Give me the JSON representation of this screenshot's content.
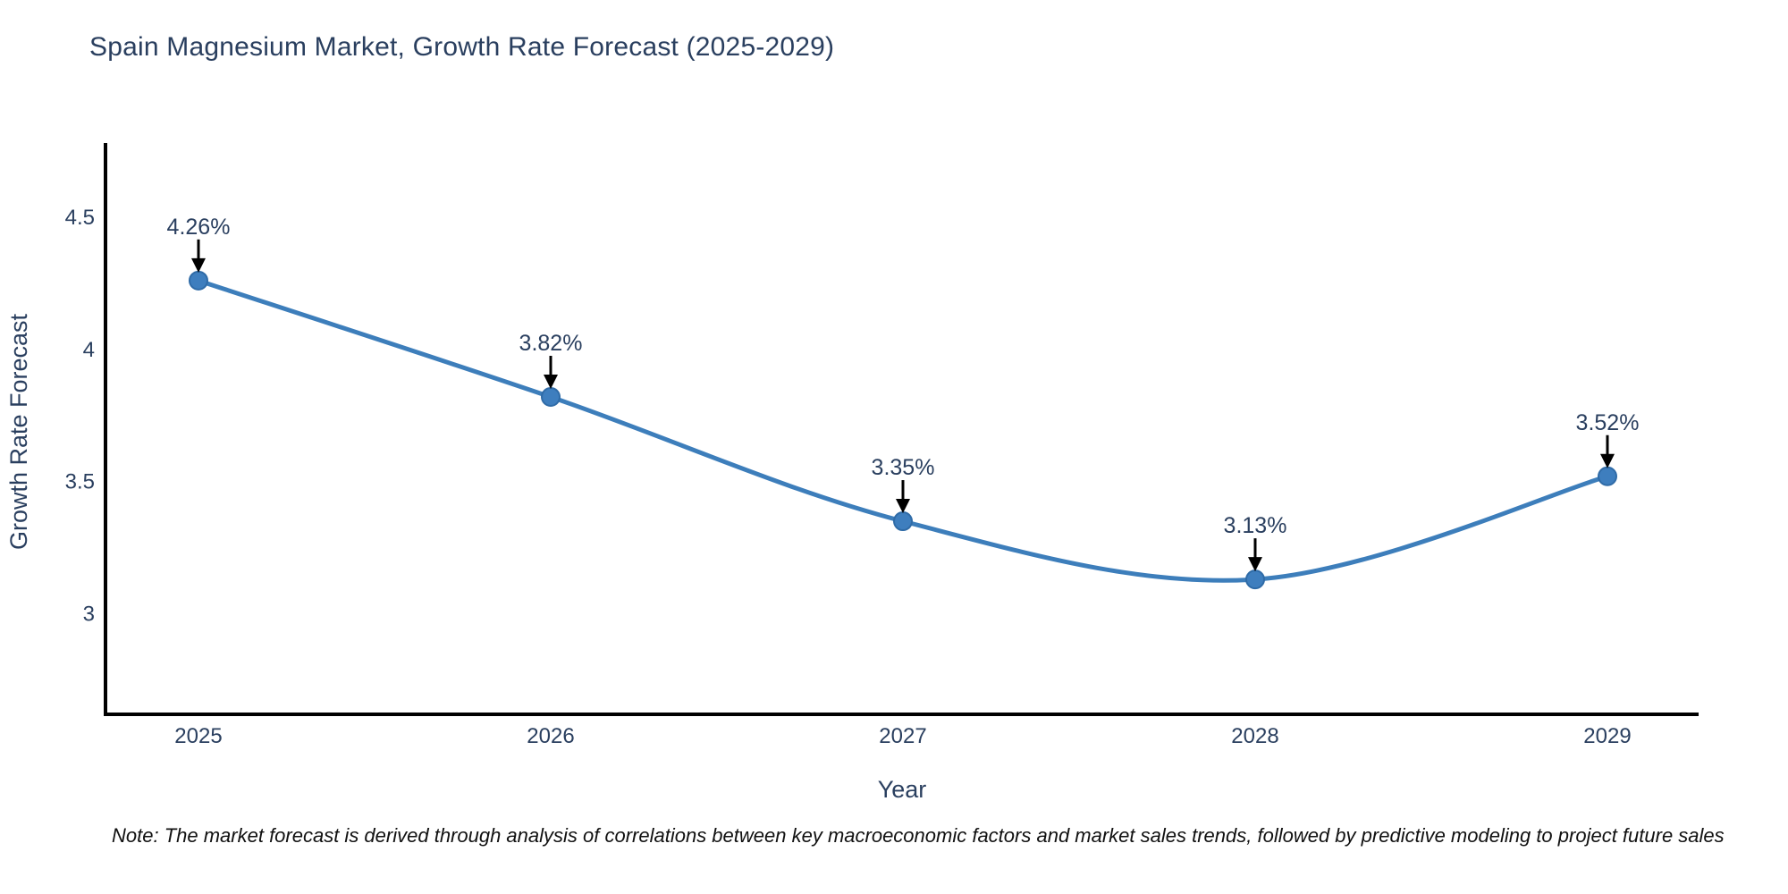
{
  "title": "Spain Magnesium Market, Growth Rate Forecast (2025-2029)",
  "note": "Note: The market forecast is derived through analysis of correlations between key macroeconomic factors and market sales trends, followed by predictive modeling to project future sales",
  "chart_data": {
    "type": "line",
    "title": "Spain Magnesium Market, Growth Rate Forecast (2025-2029)",
    "xlabel": "Year",
    "ylabel": "Growth Rate Forecast",
    "categories": [
      "2025",
      "2026",
      "2027",
      "2028",
      "2029"
    ],
    "values": [
      4.26,
      3.82,
      3.35,
      3.13,
      3.52
    ],
    "labels": [
      "4.26%",
      "3.82%",
      "3.35%",
      "3.13%",
      "3.52%"
    ],
    "yticks": [
      3,
      3.5,
      4,
      4.5
    ],
    "ylim": [
      2.62,
      4.78
    ],
    "line_shape": "spline",
    "grid": false,
    "legend": false,
    "colors": {
      "line": "#3D7EBB",
      "marker_fill": "#3E7EBE",
      "marker_edge": "#2F6BA7",
      "axis_line": "#000000",
      "tick_text": "#2a3f5f",
      "annotation_text": "#2a3f5f",
      "arrow": "#000000",
      "title_text": "#2a3f5f"
    }
  }
}
